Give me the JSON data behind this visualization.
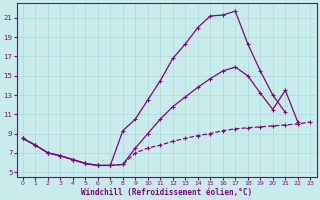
{
  "xlabel": "Windchill (Refroidissement éolien,°C)",
  "bg_color": "#c8ecec",
  "grid_color": "#b0d8d8",
  "line_color": "#880088",
  "xlim": [
    -0.5,
    23.5
  ],
  "ylim": [
    4.5,
    22.5
  ],
  "xticks": [
    0,
    1,
    2,
    3,
    4,
    5,
    6,
    7,
    8,
    9,
    10,
    11,
    12,
    13,
    14,
    15,
    16,
    17,
    18,
    19,
    20,
    21,
    22,
    23
  ],
  "yticks": [
    5,
    7,
    9,
    11,
    13,
    15,
    17,
    19,
    21
  ],
  "line1_x": [
    0,
    1,
    2,
    3,
    4,
    5,
    6,
    7,
    8,
    9,
    10,
    11,
    12,
    13,
    14,
    15,
    16,
    17,
    18,
    19,
    20,
    21
  ],
  "line1_y": [
    8.5,
    7.8,
    7.0,
    6.7,
    6.3,
    5.9,
    5.7,
    5.7,
    9.3,
    10.5,
    12.5,
    14.5,
    16.8,
    18.3,
    20.0,
    21.2,
    21.3,
    21.7,
    18.3,
    15.5,
    13.0,
    11.2
  ],
  "line2_x": [
    0,
    1,
    2,
    3,
    4,
    5,
    6,
    7,
    8,
    9,
    10,
    11,
    12,
    13,
    14,
    15,
    16,
    17,
    18,
    19,
    20,
    21,
    22
  ],
  "line2_y": [
    8.5,
    7.8,
    7.0,
    6.7,
    6.3,
    5.9,
    5.7,
    5.7,
    5.8,
    7.5,
    9.0,
    10.5,
    11.8,
    12.8,
    13.8,
    14.7,
    15.5,
    15.9,
    15.0,
    13.2,
    11.5,
    13.5,
    10.2
  ],
  "line3_x": [
    0,
    1,
    2,
    3,
    4,
    5,
    6,
    7,
    8,
    9,
    10,
    11,
    12,
    13,
    14,
    15,
    16,
    17,
    18,
    19,
    20,
    21,
    22,
    23
  ],
  "line3_y": [
    8.5,
    7.8,
    7.0,
    6.7,
    6.3,
    5.9,
    5.7,
    5.7,
    5.8,
    7.0,
    7.5,
    7.8,
    8.2,
    8.5,
    8.8,
    9.0,
    9.3,
    9.5,
    9.6,
    9.7,
    9.8,
    9.9,
    10.0,
    10.2
  ]
}
